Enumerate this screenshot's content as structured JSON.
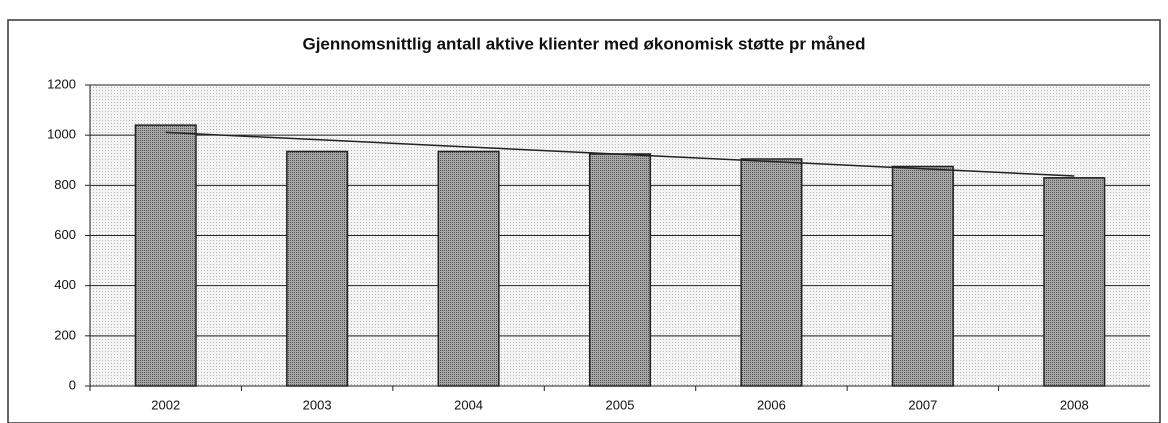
{
  "chart_data": {
    "type": "bar",
    "title": "Gjennomsnittlig antall aktive klienter med økonomisk støtte pr måned",
    "categories": [
      "2002",
      "2003",
      "2004",
      "2005",
      "2006",
      "2007",
      "2008"
    ],
    "values": [
      1040,
      935,
      935,
      925,
      905,
      875,
      830
    ],
    "trend_values": [
      1011,
      982,
      953,
      924,
      895,
      866,
      837
    ],
    "color": "#9a9a9a",
    "ylim": [
      0,
      1200
    ],
    "yticks": [
      0,
      200,
      400,
      600,
      800,
      1000,
      1200
    ],
    "grid": true
  }
}
